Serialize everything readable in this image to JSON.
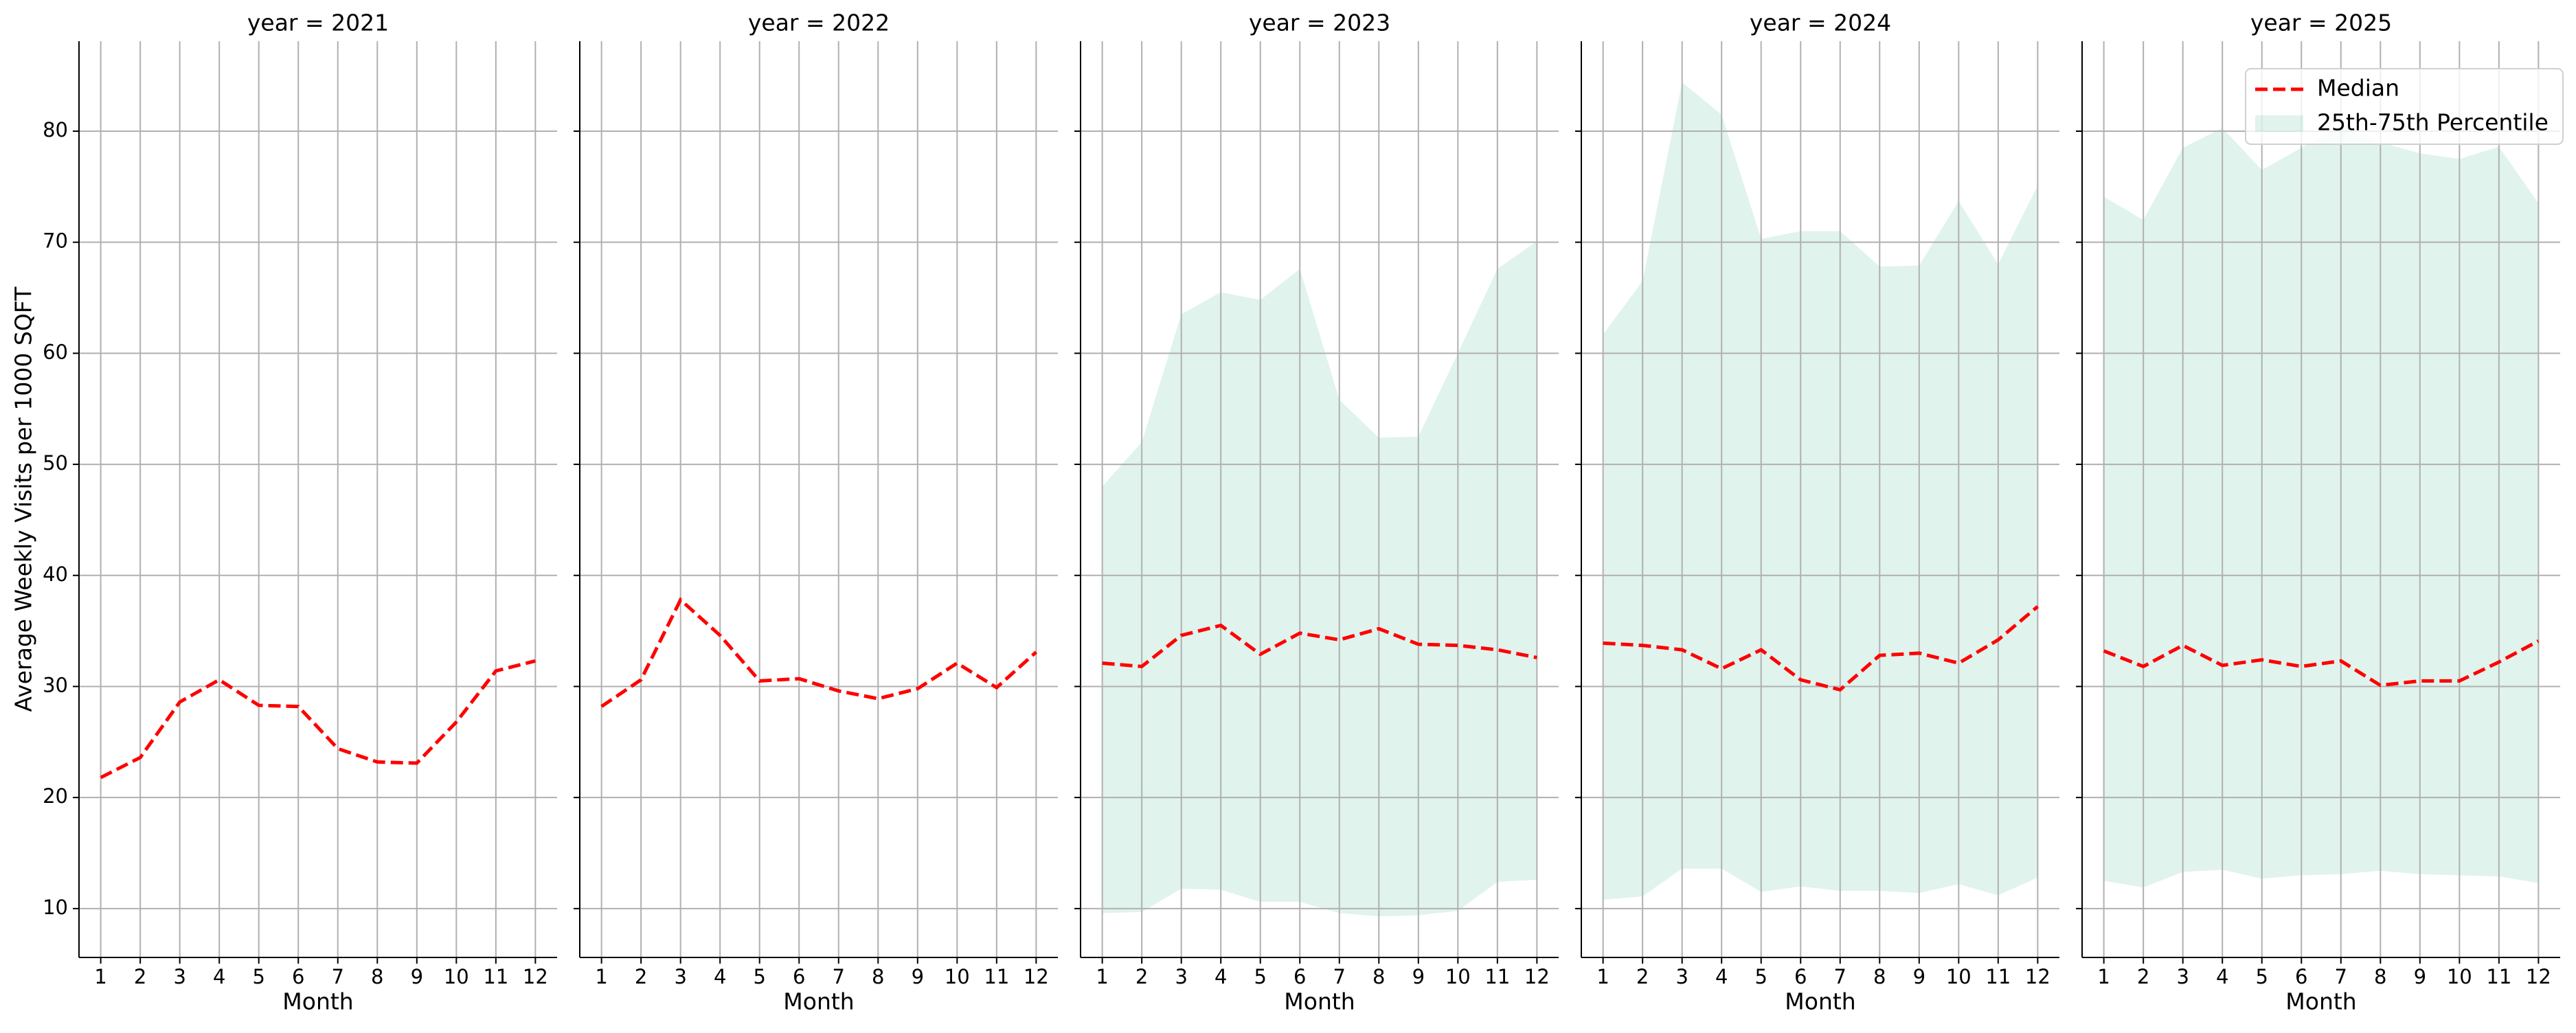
{
  "chart_data": [
    {
      "type": "line",
      "title": "year = 2021",
      "xlabel": "Month",
      "ylabel": "Average Weekly Visits per 1000 SQFT",
      "ytick_labels": true,
      "x": [
        1,
        2,
        3,
        4,
        5,
        6,
        7,
        8,
        9,
        10,
        11,
        12
      ],
      "series": [
        {
          "name": "Median",
          "color": "#ff0000",
          "values": [
            21.8,
            23.6,
            28.6,
            30.6,
            28.3,
            28.2,
            24.4,
            23.2,
            23.1,
            26.8,
            31.4,
            32.3
          ]
        }
      ],
      "xlim": [
        0.45,
        12.55
      ],
      "ylim": [
        5.6,
        88.1
      ],
      "xticks": [
        1,
        2,
        3,
        4,
        5,
        6,
        7,
        8,
        9,
        10,
        11,
        12
      ],
      "yticks": [
        10,
        20,
        30,
        40,
        50,
        60,
        70,
        80
      ],
      "grid": true
    },
    {
      "type": "line",
      "title": "year = 2022",
      "xlabel": "Month",
      "ytick_labels": false,
      "x": [
        1,
        2,
        3,
        4,
        5,
        6,
        7,
        8,
        9,
        10,
        11,
        12
      ],
      "series": [
        {
          "name": "Median",
          "color": "#ff0000",
          "values": [
            28.2,
            30.6,
            37.8,
            34.6,
            30.5,
            30.7,
            29.6,
            28.9,
            29.8,
            32.1,
            29.9,
            33.1
          ]
        }
      ],
      "xlim": [
        0.45,
        12.55
      ],
      "ylim": [
        5.6,
        88.1
      ],
      "xticks": [
        1,
        2,
        3,
        4,
        5,
        6,
        7,
        8,
        9,
        10,
        11,
        12
      ],
      "yticks": [
        10,
        20,
        30,
        40,
        50,
        60,
        70,
        80
      ],
      "grid": true
    },
    {
      "type": "line",
      "title": "year = 2023",
      "xlabel": "Month",
      "ytick_labels": false,
      "x": [
        1,
        2,
        3,
        4,
        5,
        6,
        7,
        8,
        9,
        10,
        11,
        12
      ],
      "series": [
        {
          "name": "Median",
          "color": "#ff0000",
          "values": [
            32.1,
            31.8,
            34.6,
            35.5,
            32.9,
            34.8,
            34.2,
            35.2,
            33.8,
            33.7,
            33.3,
            32.6
          ]
        },
        {
          "name": "25th-75th Percentile",
          "color": "#66c2a5",
          "alpha": 0.2,
          "lower": [
            9.6,
            9.7,
            11.8,
            11.7,
            10.6,
            10.6,
            9.6,
            9.3,
            9.4,
            9.8,
            12.4,
            12.6
          ],
          "upper": [
            48,
            52,
            63.5,
            65.5,
            64.8,
            67.6,
            55.8,
            52.4,
            52.5,
            60,
            67.6,
            70.1
          ]
        }
      ],
      "xlim": [
        0.45,
        12.55
      ],
      "ylim": [
        5.6,
        88.1
      ],
      "xticks": [
        1,
        2,
        3,
        4,
        5,
        6,
        7,
        8,
        9,
        10,
        11,
        12
      ],
      "yticks": [
        10,
        20,
        30,
        40,
        50,
        60,
        70,
        80
      ],
      "grid": true
    },
    {
      "type": "line",
      "title": "year = 2024",
      "xlabel": "Month",
      "ytick_labels": false,
      "x": [
        1,
        2,
        3,
        4,
        5,
        6,
        7,
        8,
        9,
        10,
        11,
        12
      ],
      "series": [
        {
          "name": "Median",
          "color": "#ff0000",
          "values": [
            33.9,
            33.7,
            33.3,
            31.6,
            33.3,
            30.6,
            29.7,
            32.8,
            33.0,
            32.1,
            34.2,
            37.2
          ]
        },
        {
          "name": "25th-75th Percentile",
          "color": "#66c2a5",
          "alpha": 0.2,
          "lower": [
            10.8,
            11.1,
            13.6,
            13.6,
            11.5,
            12.0,
            11.6,
            11.6,
            11.4,
            12.2,
            11.2,
            12.8
          ],
          "upper": [
            61.7,
            66.5,
            84.4,
            81.5,
            70.3,
            71.0,
            71.0,
            67.8,
            67.9,
            73.7,
            68.0,
            75.1
          ]
        }
      ],
      "xlim": [
        0.45,
        12.55
      ],
      "ylim": [
        5.6,
        88.1
      ],
      "xticks": [
        1,
        2,
        3,
        4,
        5,
        6,
        7,
        8,
        9,
        10,
        11,
        12
      ],
      "yticks": [
        10,
        20,
        30,
        40,
        50,
        60,
        70,
        80
      ],
      "grid": true
    },
    {
      "type": "line",
      "title": "year = 2025",
      "xlabel": "Month",
      "ytick_labels": false,
      "legend": "upper right",
      "x": [
        1,
        2,
        3,
        4,
        5,
        6,
        7,
        8,
        9,
        10,
        11,
        12
      ],
      "series": [
        {
          "name": "Median",
          "color": "#ff0000",
          "values": [
            33.2,
            31.8,
            33.7,
            31.9,
            32.4,
            31.8,
            32.3,
            30.1,
            30.5,
            30.5,
            32.2,
            34.1
          ]
        },
        {
          "name": "25th-75th Percentile",
          "color": "#66c2a5",
          "alpha": 0.2,
          "lower": [
            12.5,
            11.9,
            13.3,
            13.5,
            12.7,
            13.0,
            13.1,
            13.4,
            13.1,
            13.0,
            12.9,
            12.3
          ],
          "upper": [
            74.1,
            72.0,
            78.5,
            80.3,
            76.5,
            78.5,
            80.5,
            79,
            78.0,
            77.5,
            78.6,
            73.5
          ]
        }
      ],
      "xlim": [
        0.45,
        12.55
      ],
      "ylim": [
        5.6,
        88.1
      ],
      "xticks": [
        1,
        2,
        3,
        4,
        5,
        6,
        7,
        8,
        9,
        10,
        11,
        12
      ],
      "yticks": [
        10,
        20,
        30,
        40,
        50,
        60,
        70,
        80
      ],
      "grid": true
    }
  ]
}
